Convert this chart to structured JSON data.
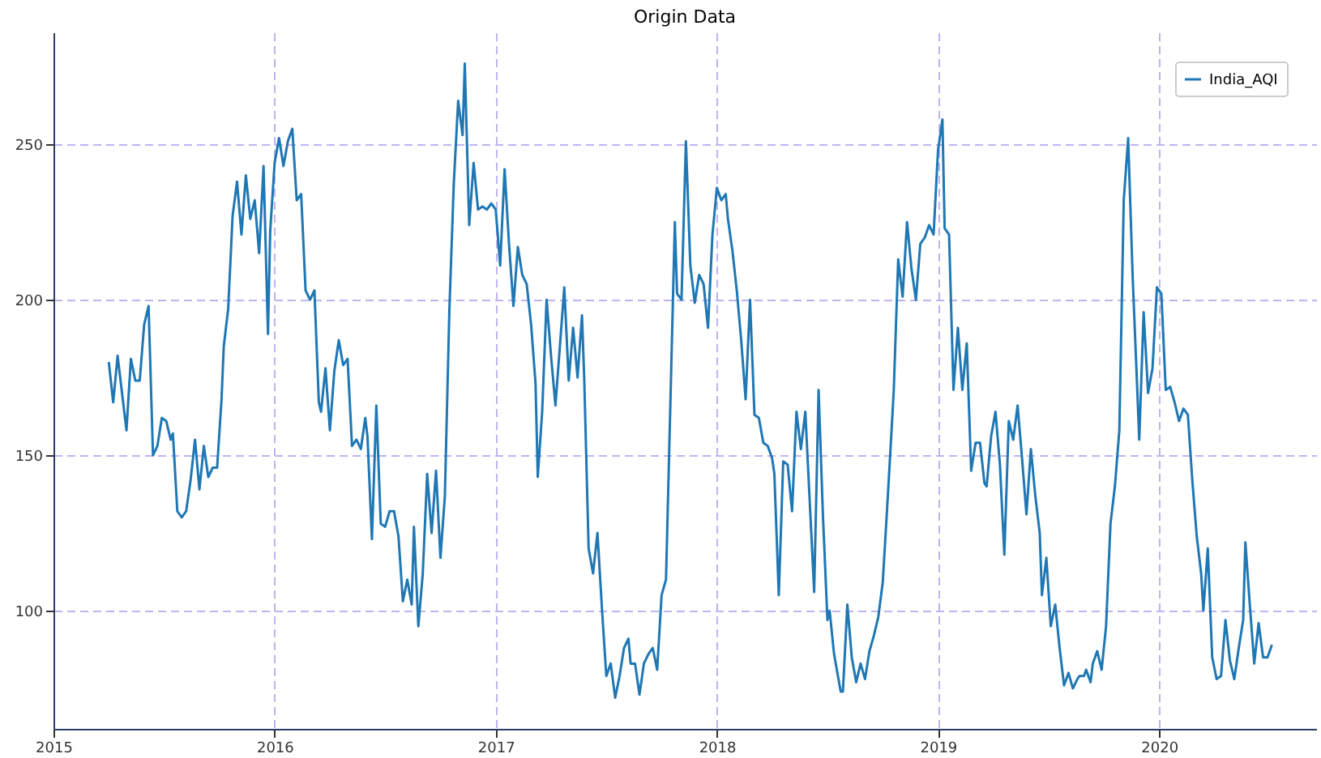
{
  "chart_data": {
    "type": "line",
    "title": "Origin Data",
    "legend": "top right",
    "grid": true,
    "line_style": "solid",
    "marker": "none",
    "xlim": [
      2015,
      2020.71
    ],
    "ylim": [
      62,
      286
    ],
    "xticks": [
      2015,
      2016,
      2017,
      2018,
      2019,
      2020
    ],
    "yticks": [
      100,
      150,
      200,
      250
    ],
    "series": [
      {
        "name": "India_AQI",
        "color": "#1f77b4",
        "x": [
          2015.25,
          2015.27,
          2015.29,
          2015.33,
          2015.35,
          2015.37,
          2015.39,
          2015.41,
          2015.43,
          2015.45,
          2015.47,
          2015.49,
          2015.51,
          2015.53,
          2015.54,
          2015.56,
          2015.58,
          2015.6,
          2015.62,
          2015.64,
          2015.66,
          2015.68,
          2015.7,
          2015.72,
          2015.74,
          2015.76,
          2015.77,
          2015.79,
          2015.81,
          2015.83,
          2015.85,
          2015.87,
          2015.89,
          2015.91,
          2015.93,
          2015.95,
          2015.97,
          2015.98,
          2016.0,
          2016.02,
          2016.04,
          2016.06,
          2016.08,
          2016.1,
          2016.12,
          2016.14,
          2016.16,
          2016.18,
          2016.2,
          2016.21,
          2016.23,
          2016.25,
          2016.27,
          2016.29,
          2016.31,
          2016.33,
          2016.35,
          2016.37,
          2016.39,
          2016.41,
          2016.42,
          2016.44,
          2016.46,
          2016.48,
          2016.5,
          2016.52,
          2016.54,
          2016.56,
          2016.58,
          2016.6,
          2016.62,
          2016.63,
          2016.65,
          2016.67,
          2016.69,
          2016.71,
          2016.73,
          2016.75,
          2016.77,
          2016.79,
          2016.81,
          2016.83,
          2016.85,
          2016.86,
          2016.88,
          2016.9,
          2016.92,
          2016.94,
          2016.96,
          2016.98,
          2017.0,
          2017.02,
          2017.04,
          2017.06,
          2017.08,
          2017.1,
          2017.12,
          2017.14,
          2017.16,
          2017.18,
          2017.19,
          2017.21,
          2017.23,
          2017.25,
          2017.27,
          2017.29,
          2017.31,
          2017.33,
          2017.35,
          2017.37,
          2017.39,
          2017.4,
          2017.42,
          2017.44,
          2017.46,
          2017.48,
          2017.5,
          2017.52,
          2017.54,
          2017.56,
          2017.58,
          2017.6,
          2017.61,
          2017.63,
          2017.65,
          2017.67,
          2017.69,
          2017.71,
          2017.73,
          2017.75,
          2017.77,
          2017.81,
          2017.82,
          2017.84,
          2017.86,
          2017.88,
          2017.9,
          2017.92,
          2017.94,
          2017.96,
          2017.98,
          2018.0,
          2018.02,
          2018.04,
          2018.05,
          2018.07,
          2018.09,
          2018.11,
          2018.13,
          2018.15,
          2018.17,
          2018.19,
          2018.21,
          2018.23,
          2018.25,
          2018.26,
          2018.28,
          2018.3,
          2018.32,
          2018.34,
          2018.36,
          2018.38,
          2018.4,
          2018.42,
          2018.44,
          2018.46,
          2018.48,
          2018.5,
          2018.51,
          2018.53,
          2018.56,
          2018.57,
          2018.59,
          2018.61,
          2018.63,
          2018.65,
          2018.67,
          2018.69,
          2018.71,
          2018.73,
          2018.75,
          2018.77,
          2018.79,
          2018.8,
          2018.82,
          2018.84,
          2018.86,
          2018.88,
          2018.9,
          2018.92,
          2018.94,
          2018.96,
          2018.98,
          2019.0,
          2019.02,
          2019.03,
          2019.05,
          2019.07,
          2019.09,
          2019.11,
          2019.13,
          2019.15,
          2019.17,
          2019.19,
          2019.21,
          2019.22,
          2019.24,
          2019.26,
          2019.28,
          2019.3,
          2019.32,
          2019.34,
          2019.36,
          2019.38,
          2019.4,
          2019.42,
          2019.44,
          2019.46,
          2019.47,
          2019.49,
          2019.51,
          2019.53,
          2019.55,
          2019.57,
          2019.59,
          2019.61,
          2019.63,
          2019.64,
          2019.66,
          2019.67,
          2019.69,
          2019.7,
          2019.72,
          2019.74,
          2019.76,
          2019.78,
          2019.8,
          2019.82,
          2019.84,
          2019.86,
          2019.88,
          2019.9,
          2019.91,
          2019.93,
          2019.95,
          2019.97,
          2019.99,
          2020.01,
          2020.03,
          2020.05,
          2020.07,
          2020.09,
          2020.11,
          2020.13,
          2020.15,
          2020.17,
          2020.19,
          2020.2,
          2020.22,
          2020.24,
          2020.26,
          2020.28,
          2020.3,
          2020.32,
          2020.34,
          2020.36,
          2020.38,
          2020.39,
          2020.41,
          2020.43,
          2020.45,
          2020.47,
          2020.49,
          2020.51
        ],
        "values": [
          180,
          167,
          182,
          158,
          181,
          174,
          174,
          192,
          198,
          150,
          153,
          162,
          161,
          155,
          157,
          132,
          130,
          132,
          142,
          155,
          139,
          153,
          143,
          146,
          146,
          168,
          185,
          197,
          227,
          238,
          221,
          240,
          226,
          232,
          215,
          243,
          189,
          222,
          244,
          252,
          243,
          251,
          255,
          232,
          234,
          203,
          200,
          203,
          167,
          164,
          178,
          158,
          177,
          187,
          179,
          181,
          153,
          155,
          152,
          162,
          156,
          123,
          166,
          128,
          127,
          132,
          132,
          124,
          103,
          110,
          102,
          127,
          95,
          112,
          144,
          125,
          145,
          117,
          137,
          196,
          237,
          264,
          253,
          276,
          224,
          244,
          229,
          230,
          229,
          231,
          229,
          211,
          242,
          218,
          198,
          217,
          208,
          205,
          192,
          173,
          143,
          164,
          200,
          182,
          166,
          185,
          204,
          174,
          191,
          175,
          195,
          175,
          120,
          112,
          125,
          101,
          79,
          83,
          72,
          79,
          88,
          91,
          83,
          83,
          73,
          83,
          86,
          88,
          81,
          105,
          110,
          225,
          202,
          200,
          251,
          211,
          199,
          208,
          205,
          191,
          221,
          236,
          232,
          234,
          226,
          216,
          203,
          187,
          168,
          200,
          163,
          162,
          154,
          153,
          149,
          144,
          105,
          148,
          147,
          132,
          164,
          152,
          164,
          135,
          106,
          171,
          130,
          97,
          100,
          86,
          74,
          74,
          102,
          85,
          77,
          83,
          78,
          87,
          92,
          98,
          109,
          133,
          158,
          171,
          213,
          201,
          225,
          210,
          200,
          218,
          220,
          224,
          221,
          248,
          258,
          223,
          221,
          171,
          191,
          171,
          186,
          145,
          154,
          154,
          141,
          140,
          156,
          164,
          147,
          118,
          161,
          155,
          166,
          149,
          131,
          152,
          137,
          125,
          105,
          117,
          95,
          102,
          88,
          76,
          80,
          75,
          78,
          79,
          79,
          81,
          77,
          83,
          87,
          81,
          95,
          128,
          140,
          158,
          232,
          252,
          208,
          173,
          155,
          196,
          170,
          178,
          204,
          202,
          171,
          172,
          167,
          161,
          165,
          163,
          142,
          124,
          112,
          100,
          120,
          85,
          78,
          79,
          97,
          84,
          78,
          88,
          97,
          122,
          102,
          83,
          96,
          85,
          85,
          89
        ]
      }
    ]
  }
}
